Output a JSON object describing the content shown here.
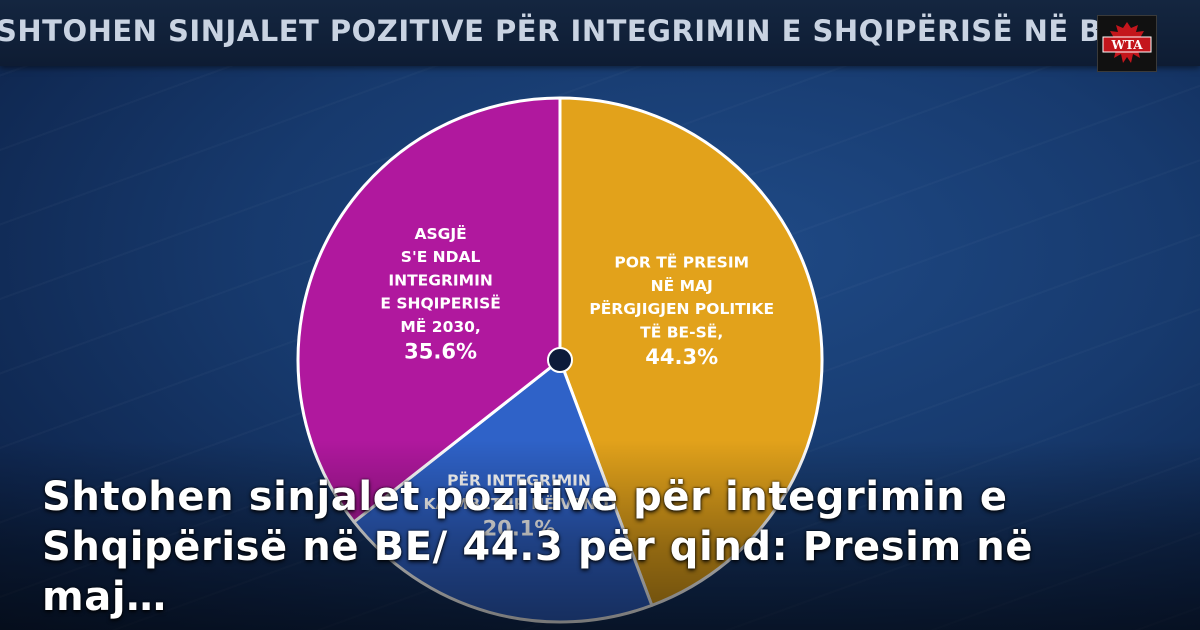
{
  "ticker": {
    "text": "SHTOHEN SINJALET POZITIVE PËR INTEGRIMIN E SHQIPËRISË NË BE"
  },
  "logo": {
    "text": "WTA"
  },
  "chart_data": {
    "type": "pie",
    "slices": [
      {
        "label_lines": [
          "POR TË PRESIM",
          "NË MAJ",
          "PËRGJIGJEN POLITIKE",
          "TË BE-SË,"
        ],
        "value_label": "44.3%",
        "value": 44.3,
        "color": "#e2a21b"
      },
      {
        "label_lines": [
          "PËR INTEGRIMIN",
          "KA MBETUR NË VEND,"
        ],
        "value_label": "20.1%",
        "value": 20.1,
        "color": "#2f62c8"
      },
      {
        "label_lines": [
          "ASGJË",
          "S'E NDAL",
          "INTEGRIMIN",
          "E SHQIPERISË",
          "MË 2030,"
        ],
        "value_label": "35.6%",
        "value": 35.6,
        "color": "#b0189e"
      }
    ]
  },
  "headline": {
    "text": "Shtohen sinjalet pozitive për integrimin e Shqipërisë në BE/ 44.3 për qind: Presim në maj…"
  }
}
